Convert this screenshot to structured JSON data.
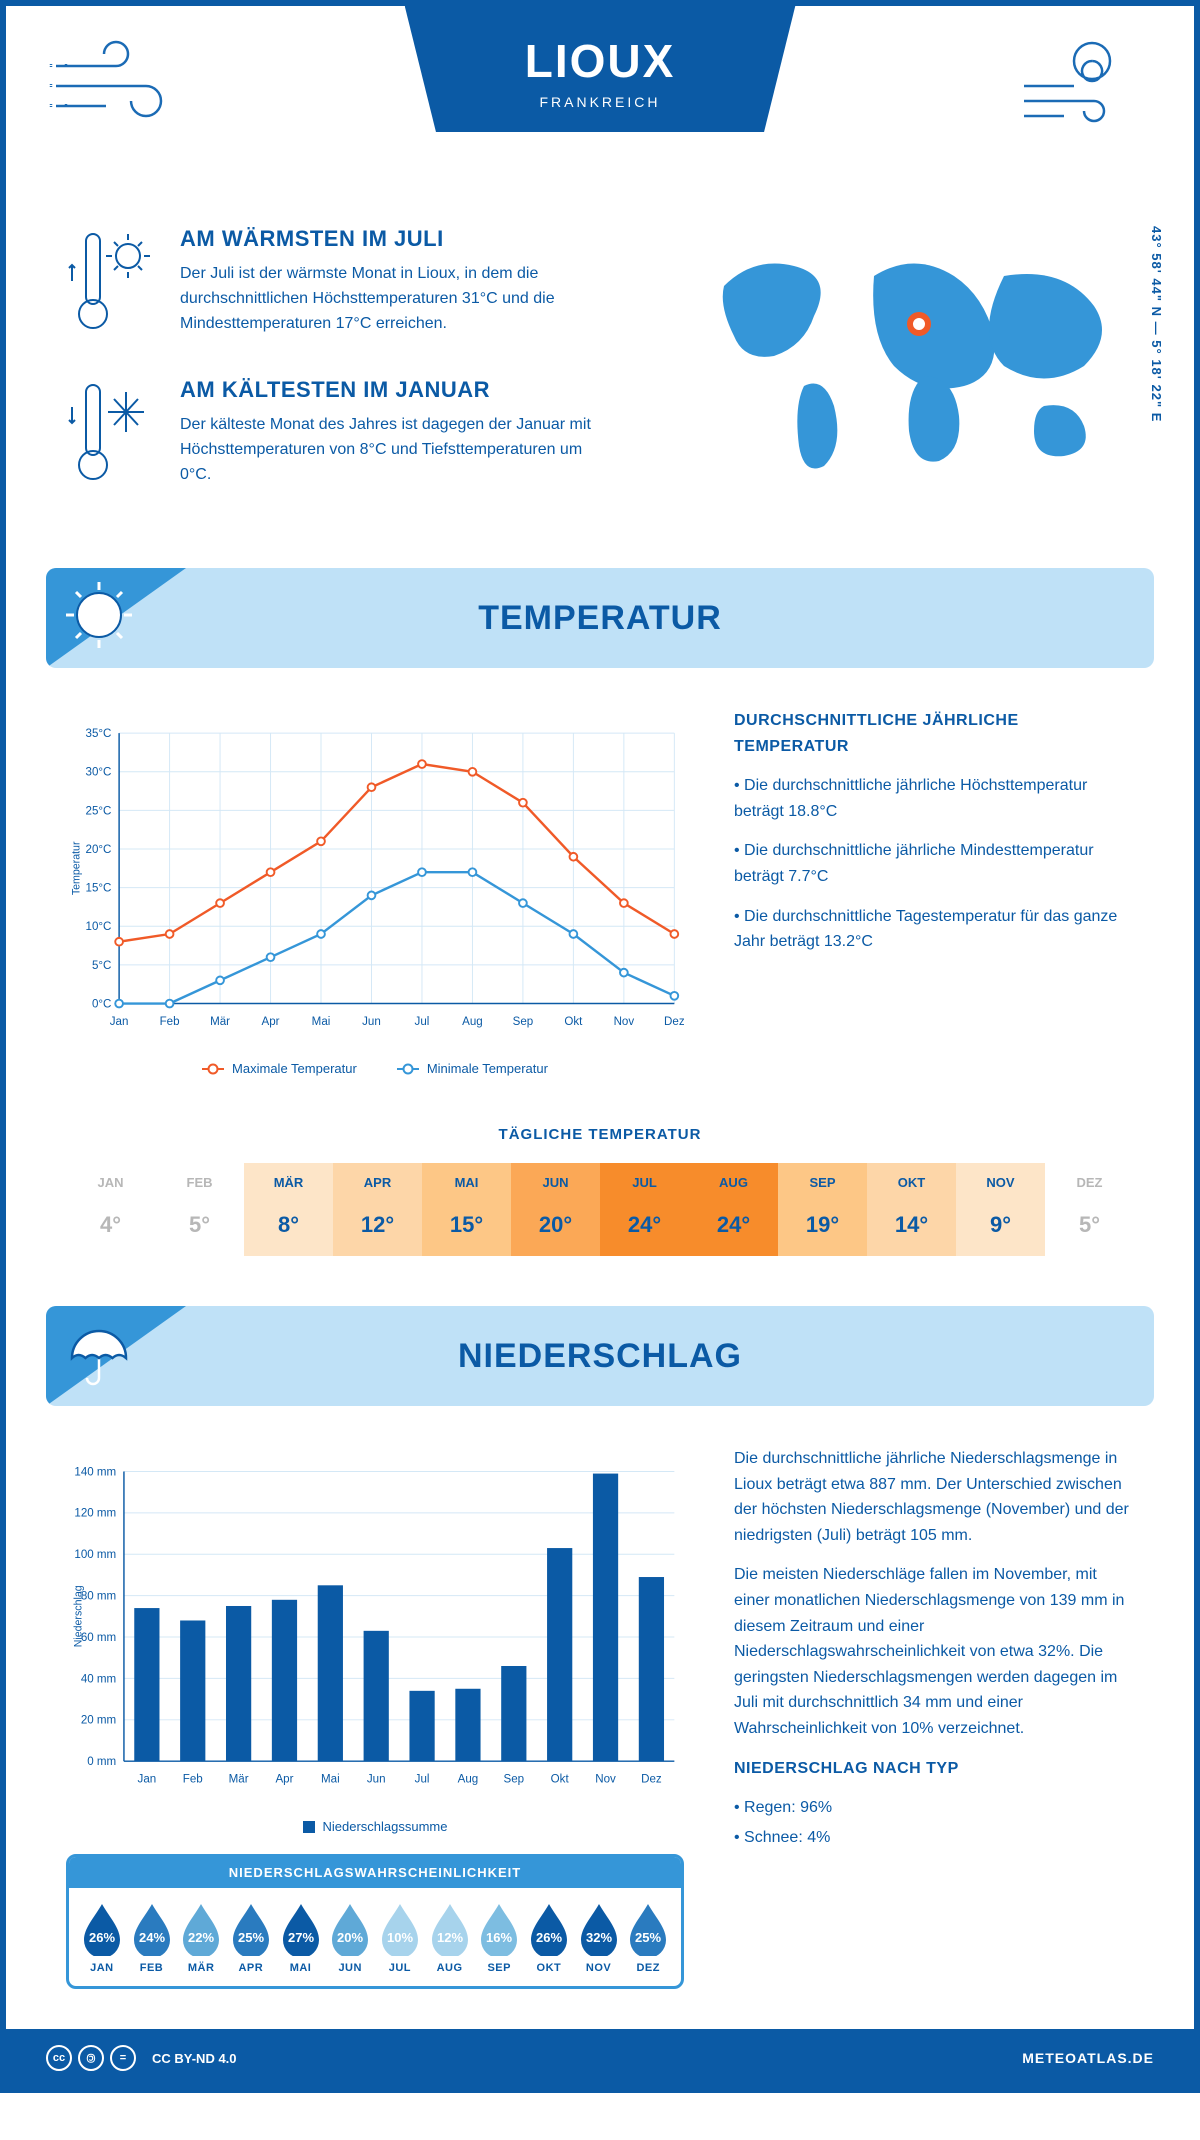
{
  "header": {
    "city": "LIOUX",
    "country": "FRANKREICH",
    "coords": "43° 58' 44\" N — 5° 18' 22\" E"
  },
  "facts": {
    "warm": {
      "title": "AM WÄRMSTEN IM JULI",
      "text": "Der Juli ist der wärmste Monat in Lioux, in dem die durchschnittlichen Höchsttemperaturen 31°C und die Mindesttemperaturen 17°C erreichen."
    },
    "cold": {
      "title": "AM KÄLTESTEN IM JANUAR",
      "text": "Der kälteste Monat des Jahres ist dagegen der Januar mit Höchsttemperaturen von 8°C und Tiefsttemperaturen um 0°C."
    }
  },
  "temperature_section": {
    "title": "TEMPERATUR",
    "info_title": "DURCHSCHNITTLICHE JÄHRLICHE TEMPERATUR",
    "bullet1": "• Die durchschnittliche jährliche Höchsttemperatur beträgt 18.8°C",
    "bullet2": "• Die durchschnittliche jährliche Mindesttemperatur beträgt 7.7°C",
    "bullet3": "• Die durchschnittliche Tagestemperatur für das ganze Jahr beträgt 13.2°C",
    "chart": {
      "months": [
        "Jan",
        "Feb",
        "Mär",
        "Apr",
        "Mai",
        "Jun",
        "Jul",
        "Aug",
        "Sep",
        "Okt",
        "Nov",
        "Dez"
      ],
      "max_series": [
        8,
        9,
        13,
        17,
        21,
        28,
        31,
        30,
        26,
        19,
        13,
        9
      ],
      "min_series": [
        0,
        0,
        3,
        6,
        9,
        14,
        17,
        17,
        13,
        9,
        4,
        1
      ],
      "max_color": "#f05a28",
      "min_color": "#3596d8",
      "ylim": [
        0,
        35
      ],
      "ytick_step": 5,
      "ylabel": "Temperatur",
      "legend_max": "Maximale Temperatur",
      "legend_min": "Minimale Temperatur"
    },
    "daily_title": "TÄGLICHE TEMPERATUR",
    "daily": {
      "months": [
        "JAN",
        "FEB",
        "MÄR",
        "APR",
        "MAI",
        "JUN",
        "JUL",
        "AUG",
        "SEP",
        "OKT",
        "NOV",
        "DEZ"
      ],
      "values": [
        "4°",
        "5°",
        "8°",
        "12°",
        "15°",
        "20°",
        "24°",
        "24°",
        "19°",
        "14°",
        "9°",
        "5°"
      ],
      "bg_colors": [
        "#ffffff",
        "#ffffff",
        "#fde5c8",
        "#fdd6a8",
        "#fdc786",
        "#fba856",
        "#f78c2b",
        "#f78c2b",
        "#fdc786",
        "#fdd6a8",
        "#fde5c8",
        "#ffffff"
      ],
      "text_colors": [
        "#b7b7b7",
        "#b7b7b7",
        "#0b5aa5",
        "#0b5aa5",
        "#0b5aa5",
        "#0b5aa5",
        "#0b5aa5",
        "#0b5aa5",
        "#0b5aa5",
        "#0b5aa5",
        "#0b5aa5",
        "#b7b7b7"
      ]
    }
  },
  "precip_section": {
    "title": "NIEDERSCHLAG",
    "para1": "Die durchschnittliche jährliche Niederschlagsmenge in Lioux beträgt etwa 887 mm. Der Unterschied zwischen der höchsten Niederschlagsmenge (November) und der niedrigsten (Juli) beträgt 105 mm.",
    "para2": "Die meisten Niederschläge fallen im November, mit einer monatlichen Niederschlagsmenge von 139 mm in diesem Zeitraum und einer Niederschlagswahrscheinlichkeit von etwa 32%. Die geringsten Niederschlagsmengen werden dagegen im Juli mit durchschnittlich 34 mm und einer Wahrscheinlichkeit von 10% verzeichnet.",
    "type_title": "NIEDERSCHLAG NACH TYP",
    "type1": "• Regen: 96%",
    "type2": "• Schnee: 4%",
    "chart": {
      "months": [
        "Jan",
        "Feb",
        "Mär",
        "Apr",
        "Mai",
        "Jun",
        "Jul",
        "Aug",
        "Sep",
        "Okt",
        "Nov",
        "Dez"
      ],
      "values": [
        74,
        68,
        75,
        78,
        85,
        63,
        34,
        35,
        46,
        103,
        139,
        89
      ],
      "bar_color": "#0b5aa5",
      "ylim": [
        0,
        140
      ],
      "ytick_step": 20,
      "ylabel": "Niederschlag",
      "legend": "Niederschlagssumme"
    },
    "prob": {
      "title": "NIEDERSCHLAGSWAHRSCHEINLICHKEIT",
      "months": [
        "JAN",
        "FEB",
        "MÄR",
        "APR",
        "MAI",
        "JUN",
        "JUL",
        "AUG",
        "SEP",
        "OKT",
        "NOV",
        "DEZ"
      ],
      "values": [
        "26%",
        "24%",
        "22%",
        "25%",
        "27%",
        "20%",
        "10%",
        "12%",
        "16%",
        "26%",
        "32%",
        "25%"
      ],
      "colors": [
        "#0b5aa5",
        "#2a7bbf",
        "#5fa9d7",
        "#2a7bbf",
        "#0b5aa5",
        "#5fa9d7",
        "#a7d3ec",
        "#a7d3ec",
        "#7dbde1",
        "#0b5aa5",
        "#0b5aa5",
        "#2a7bbf"
      ]
    }
  },
  "footer": {
    "license": "CC BY-ND 4.0",
    "site": "METEOATLAS.DE"
  }
}
